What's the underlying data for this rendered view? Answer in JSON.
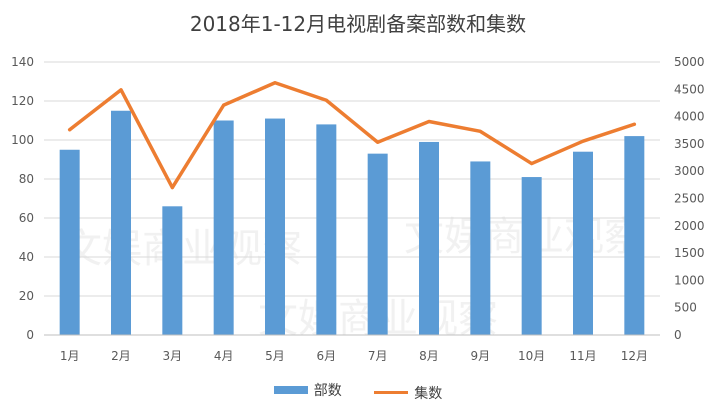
{
  "colors": {
    "bar": "#5b9bd5",
    "line": "#ed7d31",
    "grid": "#d9d9d9",
    "axis": "#bfbfbf"
  },
  "watermark_text": [
    "文娱商业观察",
    "文娱商业观察",
    "文娱商业观察"
  ],
  "chart_data": {
    "type": "bar",
    "title": "2018年1-12月电视剧备案部数和集数",
    "categories": [
      "1月",
      "2月",
      "3月",
      "4月",
      "5月",
      "6月",
      "7月",
      "8月",
      "9月",
      "10月",
      "11月",
      "12月"
    ],
    "series": [
      {
        "name": "部数",
        "type": "bar",
        "axis": "left",
        "values": [
          95,
          115,
          66,
          110,
          111,
          108,
          93,
          99,
          89,
          81,
          94,
          102
        ]
      },
      {
        "name": "集数",
        "type": "line",
        "axis": "right",
        "values": [
          3760,
          4490,
          2700,
          4210,
          4620,
          4300,
          3530,
          3910,
          3730,
          3140,
          3550,
          3860
        ]
      }
    ],
    "y_left": {
      "min": 0,
      "max": 140,
      "ticks": [
        0,
        20,
        40,
        60,
        80,
        100,
        120,
        140
      ]
    },
    "y_right": {
      "min": 0,
      "max": 5000,
      "ticks": [
        0,
        500,
        1000,
        1500,
        2000,
        2500,
        3000,
        3500,
        4000,
        4500,
        5000
      ]
    },
    "legend": [
      "部数",
      "集数"
    ],
    "grid": true
  }
}
